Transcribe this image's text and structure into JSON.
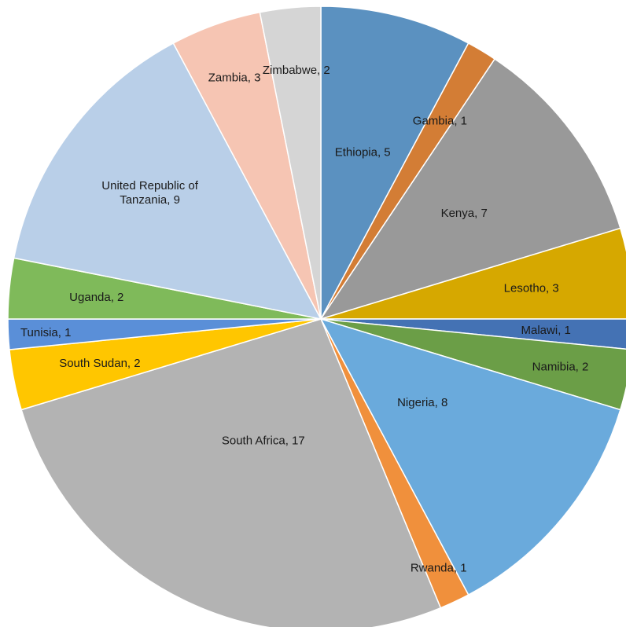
{
  "chart_data": {
    "type": "pie",
    "title": "",
    "start_angle_deg": 0,
    "direction": "clockwise",
    "slices": [
      {
        "label": "Ethiopia",
        "value": 5,
        "color": "#5b91c0"
      },
      {
        "label": "Gambia",
        "value": 1,
        "color": "#d37d35"
      },
      {
        "label": "Kenya",
        "value": 7,
        "color": "#999999"
      },
      {
        "label": "Lesotho",
        "value": 3,
        "color": "#d6a800"
      },
      {
        "label": "Malawi",
        "value": 1,
        "color": "#4472b4"
      },
      {
        "label": "Namibia",
        "value": 2,
        "color": "#6b9e47"
      },
      {
        "label": "Nigeria",
        "value": 8,
        "color": "#6aaadc"
      },
      {
        "label": "Rwanda",
        "value": 1,
        "color": "#f0903c"
      },
      {
        "label": "South Africa",
        "value": 17,
        "color": "#b3b3b3"
      },
      {
        "label": "South Sudan",
        "value": 2,
        "color": "#ffc600"
      },
      {
        "label": "Tunisia",
        "value": 1,
        "color": "#5a8fd8"
      },
      {
        "label": "Uganda",
        "value": 2,
        "color": "#7fba5a"
      },
      {
        "label": "United Republic of Tanzania",
        "label_lines": [
          "United Republic of",
          "Tanzania, 9"
        ],
        "value": 9,
        "color": "#b9cfe8"
      },
      {
        "label": "Zambia",
        "value": 3,
        "color": "#f6c5b3"
      },
      {
        "label": "Zimbabwe",
        "value": 2,
        "color": "#d5d5d5"
      }
    ]
  }
}
